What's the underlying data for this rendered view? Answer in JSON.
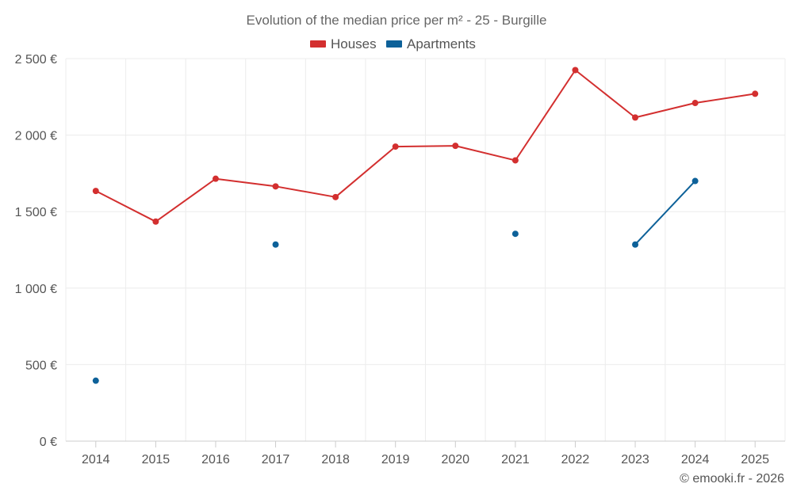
{
  "chart_data": {
    "type": "line",
    "title": "Evolution of the median price per m² - 25 - Burgille",
    "categories": [
      "2014",
      "2015",
      "2016",
      "2017",
      "2018",
      "2019",
      "2020",
      "2021",
      "2022",
      "2023",
      "2024",
      "2025"
    ],
    "series": [
      {
        "name": "Houses",
        "color": "#d32f2f",
        "values": [
          1635,
          1435,
          1715,
          1665,
          1595,
          1925,
          1930,
          1835,
          2425,
          2115,
          2210,
          2270
        ]
      },
      {
        "name": "Apartments",
        "color": "#0d6199",
        "values": [
          395,
          null,
          null,
          1285,
          null,
          null,
          null,
          1355,
          null,
          1285,
          1700,
          null
        ]
      }
    ],
    "ylim": [
      0,
      2500
    ],
    "yticks": [
      0,
      500,
      1000,
      1500,
      2000,
      2500
    ],
    "ytick_labels": [
      "0 €",
      "500 €",
      "1 000 €",
      "1 500 €",
      "2 000 €",
      "2 500 €"
    ],
    "xlabel": "",
    "ylabel": "",
    "grid": true,
    "legend_position": "top-center"
  },
  "credit": "© emooki.fr - 2026"
}
